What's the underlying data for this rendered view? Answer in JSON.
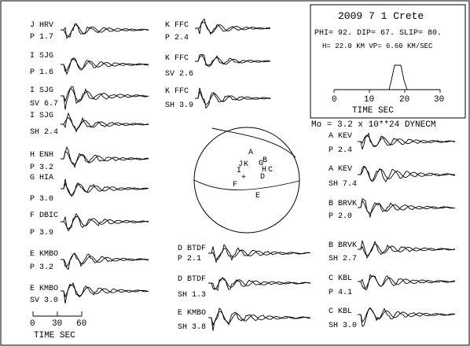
{
  "header": {
    "title": "2009  7  1  Crete",
    "params": "PHI=  92. DIP= 67. SLIP=  80.",
    "depth_vp": "H= 22.0 KM  VP= 6.60 KM/SEC",
    "moment": "Mo =  3.2 x 10**24 DYNECM"
  },
  "stf": {
    "x_ticks": [
      "0",
      "10",
      "20",
      "30"
    ],
    "xlabel": "TIME   SEC"
  },
  "time_scale": {
    "ticks": [
      "0",
      "30",
      "60"
    ],
    "label": "TIME   SEC"
  },
  "focal": {
    "stations": [
      {
        "code": "A",
        "text": "A"
      },
      {
        "code": "B",
        "text": "B"
      },
      {
        "code": "C",
        "text": "C"
      },
      {
        "code": "G",
        "text": "G"
      },
      {
        "code": "H",
        "text": "H"
      },
      {
        "code": "D",
        "text": "D"
      },
      {
        "code": "E",
        "text": "E"
      },
      {
        "code": "F",
        "text": "F"
      },
      {
        "code": "J",
        "text": "J"
      },
      {
        "code": "K",
        "text": "K"
      },
      {
        "code": "I",
        "text": "I"
      }
    ]
  },
  "traces": [
    {
      "code": "J HRV",
      "phase": "P",
      "amp": "1.7"
    },
    {
      "code": "I SJG",
      "phase": "P",
      "amp": "1.6"
    },
    {
      "code": "I SJG",
      "phase": "SV",
      "amp": "6.7"
    },
    {
      "code": "I SJG",
      "phase": "SH",
      "amp": "2.4"
    },
    {
      "code": "H ENH",
      "phase": "P",
      "amp": "3.2"
    },
    {
      "code": "G HIA",
      "phase": "P",
      "amp": "3.0"
    },
    {
      "code": "F DBIC",
      "phase": "P",
      "amp": "3.9"
    },
    {
      "code": "E KMBO",
      "phase": "P",
      "amp": "3.2"
    },
    {
      "code": "E KMBO",
      "phase": "SV",
      "amp": "3.0"
    },
    {
      "code": "K FFC",
      "phase": "P",
      "amp": "2.4"
    },
    {
      "code": "K FFC",
      "phase": "SV",
      "amp": "2.6"
    },
    {
      "code": "K FFC",
      "phase": "SH",
      "amp": "3.9"
    },
    {
      "code": "D BTDF",
      "phase": "P",
      "amp": "2.1"
    },
    {
      "code": "D BTDF",
      "phase": "SH",
      "amp": "1.3"
    },
    {
      "code": "E KMBO",
      "phase": "SH",
      "amp": "3.8"
    },
    {
      "code": "A KEV",
      "phase": "P",
      "amp": "2.4"
    },
    {
      "code": "A KEV",
      "phase": "SH",
      "amp": "7.4"
    },
    {
      "code": "B BRVK",
      "phase": "P",
      "amp": "2.0"
    },
    {
      "code": "B BRVK",
      "phase": "SH",
      "amp": "2.7"
    },
    {
      "code": "C KBL",
      "phase": "P",
      "amp": "4.1"
    },
    {
      "code": "C KBL",
      "phase": "SH",
      "amp": "3.0"
    }
  ]
}
